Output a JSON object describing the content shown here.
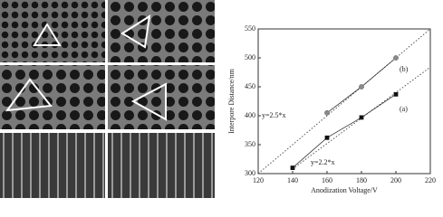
{
  "chart_data": {
    "type": "line",
    "xlabel": "Anodization Voltage/V",
    "ylabel": "Interpore Distance/nm",
    "xlim": [
      120,
      220
    ],
    "xticks": [
      120,
      140,
      160,
      180,
      200,
      220
    ],
    "ylim": [
      300,
      550
    ],
    "yticks": [
      300,
      350,
      400,
      450,
      500,
      550
    ],
    "series": [
      {
        "name": "(b)",
        "color": "#8a8a8a",
        "marker": "circle",
        "x": [
          160,
          180,
          200
        ],
        "values": [
          405,
          450,
          500
        ]
      },
      {
        "name": "(a)",
        "color": "#111111",
        "marker": "square",
        "x": [
          140,
          160,
          180,
          200
        ],
        "values": [
          310,
          362,
          397,
          437
        ]
      }
    ],
    "fits": [
      {
        "name": "y=2.5*x",
        "color": "#555555",
        "x": [
          120,
          220
        ],
        "values": [
          300,
          550
        ]
      },
      {
        "name": "y=2.2*x",
        "color": "#555555",
        "x": [
          140,
          220
        ],
        "values": [
          308,
          484
        ]
      }
    ]
  }
}
